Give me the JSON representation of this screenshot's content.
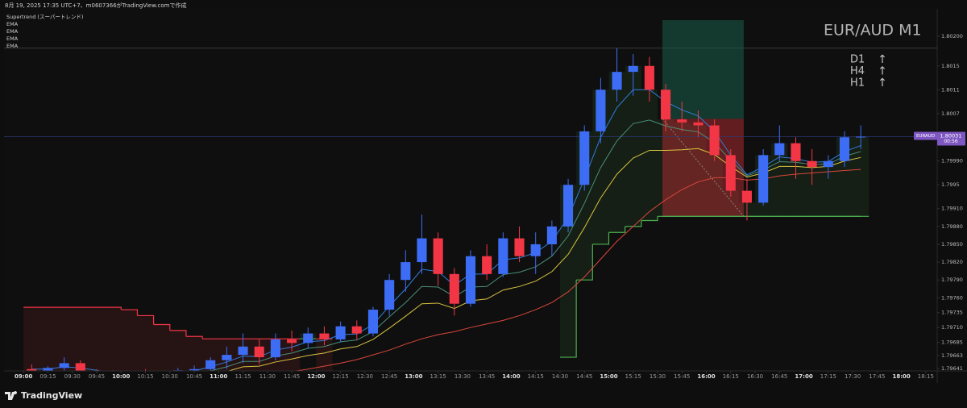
{
  "chart_data": {
    "type": "candlestick",
    "subtitle": "8月 19, 2025 17:35 UTC+7、m0607366がTradingView.comで作成",
    "title": "EUR/AUD M1",
    "footer": "TradingView",
    "annotations": [
      {
        "label": "D1",
        "arrow": "↑"
      },
      {
        "label": "H4",
        "arrow": "↑"
      },
      {
        "label": "H1",
        "arrow": "↑"
      }
    ],
    "up_color": "#3d6cf5",
    "down_color": "#f23645",
    "x": [
      "09:00",
      "09:10",
      "09:20",
      "09:30",
      "09:40",
      "09:50",
      "10:00",
      "10:10",
      "10:20",
      "10:30",
      "10:40",
      "10:50",
      "11:00",
      "11:10",
      "11:20",
      "11:30",
      "11:40",
      "11:50",
      "12:00",
      "12:10",
      "12:20",
      "12:30",
      "12:40",
      "12:50",
      "13:00",
      "13:10",
      "13:20",
      "13:30",
      "13:40",
      "13:50",
      "14:00",
      "14:10",
      "14:20",
      "14:30",
      "14:40",
      "14:50",
      "15:00",
      "15:10",
      "15:20",
      "15:30",
      "15:40",
      "15:50",
      "16:00",
      "16:10",
      "16:20",
      "16:30",
      "16:40",
      "16:50",
      "17:00",
      "17:10",
      "17:20",
      "17:30"
    ],
    "open": [
      1.7964,
      1.79636,
      1.79642,
      1.7965,
      1.79634,
      1.7963,
      1.79628,
      1.79632,
      1.7963,
      1.79634,
      1.79638,
      1.7964,
      1.79655,
      1.79664,
      1.79678,
      1.7966,
      1.7969,
      1.79684,
      1.797,
      1.7969,
      1.79712,
      1.797,
      1.7974,
      1.7979,
      1.7982,
      1.7986,
      1.798,
      1.7975,
      1.7983,
      1.798,
      1.7986,
      1.7983,
      1.7985,
      1.7988,
      1.7995,
      1.8004,
      1.8011,
      1.8014,
      1.8015,
      1.8011,
      1.8006,
      1.80055,
      1.8005,
      1.8,
      1.7994,
      1.7992,
      1.8,
      1.8002,
      1.7999,
      1.7998,
      1.7999,
      1.8003
    ],
    "high": [
      1.79648,
      1.79645,
      1.7966,
      1.79655,
      1.7964,
      1.79638,
      1.79636,
      1.7964,
      1.79636,
      1.79642,
      1.79646,
      1.7966,
      1.79678,
      1.797,
      1.7969,
      1.797,
      1.79705,
      1.7971,
      1.79712,
      1.7972,
      1.79722,
      1.79745,
      1.798,
      1.7984,
      1.799,
      1.7987,
      1.7981,
      1.7984,
      1.7985,
      1.7987,
      1.7988,
      1.7987,
      1.7989,
      1.7996,
      1.8005,
      1.8013,
      1.8018,
      1.8017,
      1.80165,
      1.8012,
      1.8009,
      1.80075,
      1.8006,
      1.8001,
      1.7996,
      1.8001,
      1.8005,
      1.8003,
      1.8001,
      1.8,
      1.8004,
      1.8005
    ],
    "low": [
      1.79628,
      1.7963,
      1.79635,
      1.7963,
      1.79625,
      1.79622,
      1.7962,
      1.79625,
      1.79622,
      1.79628,
      1.7963,
      1.79636,
      1.7964,
      1.7965,
      1.79648,
      1.79655,
      1.7967,
      1.79675,
      1.7968,
      1.79685,
      1.7969,
      1.79695,
      1.7973,
      1.7977,
      1.798,
      1.7978,
      1.7973,
      1.79745,
      1.7979,
      1.79795,
      1.7982,
      1.798,
      1.7983,
      1.7987,
      1.7994,
      1.8002,
      1.8009,
      1.801,
      1.8009,
      1.8004,
      1.8004,
      1.8003,
      1.7999,
      1.7993,
      1.7989,
      1.79915,
      1.7999,
      1.7996,
      1.7995,
      1.7996,
      1.7998,
      1.8001
    ],
    "close": [
      1.79636,
      1.79642,
      1.7965,
      1.79634,
      1.7963,
      1.79628,
      1.79632,
      1.7963,
      1.79634,
      1.79638,
      1.7964,
      1.79655,
      1.79664,
      1.79678,
      1.7966,
      1.7969,
      1.79684,
      1.797,
      1.7969,
      1.79712,
      1.797,
      1.7974,
      1.7979,
      1.7982,
      1.7986,
      1.798,
      1.7975,
      1.7983,
      1.798,
      1.7986,
      1.7983,
      1.7985,
      1.7988,
      1.7995,
      1.8004,
      1.8011,
      1.8014,
      1.8015,
      1.8011,
      1.8006,
      1.80055,
      1.8005,
      1.8,
      1.7994,
      1.7992,
      1.8,
      1.8002,
      1.7999,
      1.7998,
      1.7999,
      1.8003,
      1.80031
    ],
    "overlays": [
      {
        "name": "Supertrend (スーパートレンド)",
        "color": "#f23645",
        "up_color": "#4caf50",
        "values": [
          1.79744,
          1.79744,
          1.79744,
          1.79744,
          1.79744,
          1.79744,
          1.7974,
          1.7973,
          1.79715,
          1.79705,
          1.79695,
          1.79691,
          1.79691,
          1.79691,
          1.79691,
          1.79691,
          1.79691,
          1.79691,
          1.79691,
          null,
          null,
          null,
          null,
          null,
          null,
          null,
          null,
          null,
          null,
          null,
          null,
          null,
          null,
          1.7966,
          1.7979,
          1.7985,
          1.7987,
          1.7988,
          1.7989,
          1.79897,
          1.79897,
          1.79897,
          1.79897,
          1.79897,
          1.79897,
          1.79897,
          1.79897,
          1.79897,
          1.79897,
          1.79897,
          1.79897,
          1.79897
        ]
      },
      {
        "name": "EMA",
        "color": "#2f7fd8",
        "values": [
          1.7964,
          1.7964,
          1.79644,
          1.79642,
          1.79638,
          1.79634,
          1.79633,
          1.79632,
          1.79633,
          1.79635,
          1.79637,
          1.79644,
          1.79652,
          1.79662,
          1.79661,
          1.79672,
          1.79677,
          1.79686,
          1.79688,
          1.79698,
          1.79699,
          1.79715,
          1.79746,
          1.79775,
          1.79808,
          1.79804,
          1.79781,
          1.798,
          1.798,
          1.79824,
          1.79827,
          1.79836,
          1.79855,
          1.79895,
          1.7996,
          1.8003,
          1.8008,
          1.8011,
          1.8011,
          1.8009,
          1.80076,
          1.80066,
          1.8004,
          1.8,
          1.79967,
          1.7998,
          1.79997,
          1.79994,
          1.79988,
          1.79989,
          1.80006,
          1.80016
        ]
      },
      {
        "name": "EMA",
        "color": "#4a8f7a",
        "values": [
          1.7963,
          1.79631,
          1.79634,
          1.79633,
          1.79631,
          1.79628,
          1.79628,
          1.79627,
          1.79628,
          1.7963,
          1.79632,
          1.79637,
          1.79644,
          1.79653,
          1.79653,
          1.79662,
          1.79667,
          1.79675,
          1.79678,
          1.79686,
          1.79689,
          1.79703,
          1.79728,
          1.79752,
          1.79779,
          1.79778,
          1.79762,
          1.79778,
          1.79779,
          1.79799,
          1.79803,
          1.79812,
          1.7983,
          1.79864,
          1.79919,
          1.79979,
          1.80024,
          1.80053,
          1.80059,
          1.80049,
          1.80043,
          1.80039,
          1.80021,
          1.79991,
          1.79965,
          1.79975,
          1.79989,
          1.79988,
          1.79984,
          1.79985,
          1.79998,
          1.80006
        ]
      },
      {
        "name": "EMA",
        "color": "#d8c341",
        "values": [
          1.7962,
          1.79621,
          1.79624,
          1.79624,
          1.79623,
          1.79622,
          1.79622,
          1.79622,
          1.79623,
          1.79624,
          1.79626,
          1.7963,
          1.79636,
          1.79644,
          1.79645,
          1.79652,
          1.79657,
          1.79663,
          1.79667,
          1.79674,
          1.79678,
          1.7969,
          1.79709,
          1.79729,
          1.7975,
          1.79751,
          1.79742,
          1.79755,
          1.79758,
          1.79773,
          1.79779,
          1.79788,
          1.79804,
          1.79833,
          1.79878,
          1.79928,
          1.79968,
          1.79995,
          1.80008,
          1.80008,
          1.80009,
          1.80011,
          1.80001,
          1.79981,
          1.79963,
          1.7997,
          1.79981,
          1.79981,
          1.79979,
          1.79981,
          1.7999,
          1.79996
        ]
      },
      {
        "name": "EMA",
        "color": "#d9473b",
        "values": [
          1.796,
          1.79602,
          1.79604,
          1.79606,
          1.79608,
          1.79609,
          1.7961,
          1.79611,
          1.79612,
          1.79613,
          1.79614,
          1.79616,
          1.7962,
          1.79625,
          1.79628,
          1.79632,
          1.79636,
          1.7964,
          1.79645,
          1.7965,
          1.79656,
          1.79664,
          1.79672,
          1.79682,
          1.79691,
          1.79698,
          1.79703,
          1.7971,
          1.79716,
          1.79722,
          1.7973,
          1.7974,
          1.79752,
          1.7977,
          1.79795,
          1.79825,
          1.79855,
          1.7988,
          1.79905,
          1.79925,
          1.79942,
          1.79955,
          1.79962,
          1.79962,
          1.79958,
          1.7996,
          1.79965,
          1.79968,
          1.7997,
          1.79972,
          1.79974,
          1.79976
        ]
      }
    ],
    "position": {
      "start": "15:33",
      "end": "16:23",
      "line_end": "17:35",
      "entry": 1.80061,
      "target": 1.80227,
      "stop": 1.79897
    },
    "hline": 1.8018,
    "last_price": {
      "symbol": "EURAUD",
      "value": 1.80031,
      "countdown": "00:56",
      "color": "#7e57c2"
    },
    "xlim": [
      "08:48",
      "18:22"
    ],
    "xticks": [
      "09:00",
      "09:15",
      "09:30",
      "09:45",
      "10:00",
      "10:15",
      "10:30",
      "10:45",
      "11:00",
      "11:15",
      "11:30",
      "11:45",
      "12:00",
      "12:15",
      "12:30",
      "12:45",
      "13:00",
      "13:15",
      "13:30",
      "13:45",
      "14:00",
      "14:15",
      "14:30",
      "14:45",
      "15:00",
      "15:15",
      "15:30",
      "15:45",
      "16:00",
      "16:15",
      "16:30",
      "16:45",
      "17:00",
      "17:15",
      "17:30",
      "17:45",
      "18:00",
      "18:15"
    ],
    "ylim": [
      1.79637,
      1.80246
    ],
    "yticks": [
      {
        "value": 1.802,
        "label": "1.80200"
      },
      1.8015,
      1.8011,
      1.8007,
      {
        "value": 1.7999,
        "label": "1.79990"
      },
      1.7995,
      {
        "value": 1.7991,
        "label": "1.79910"
      },
      {
        "value": 1.7988,
        "label": "1.79880"
      },
      {
        "value": 1.7985,
        "label": "1.79850"
      },
      {
        "value": 1.7982,
        "label": "1.79820"
      },
      {
        "value": 1.7979,
        "label": "1.79790"
      },
      {
        "value": 1.7976,
        "label": "1.79760"
      },
      1.79735,
      {
        "value": 1.7971,
        "label": "1.79710"
      },
      1.79685,
      1.79663,
      1.79641
    ],
    "grid": false
  }
}
